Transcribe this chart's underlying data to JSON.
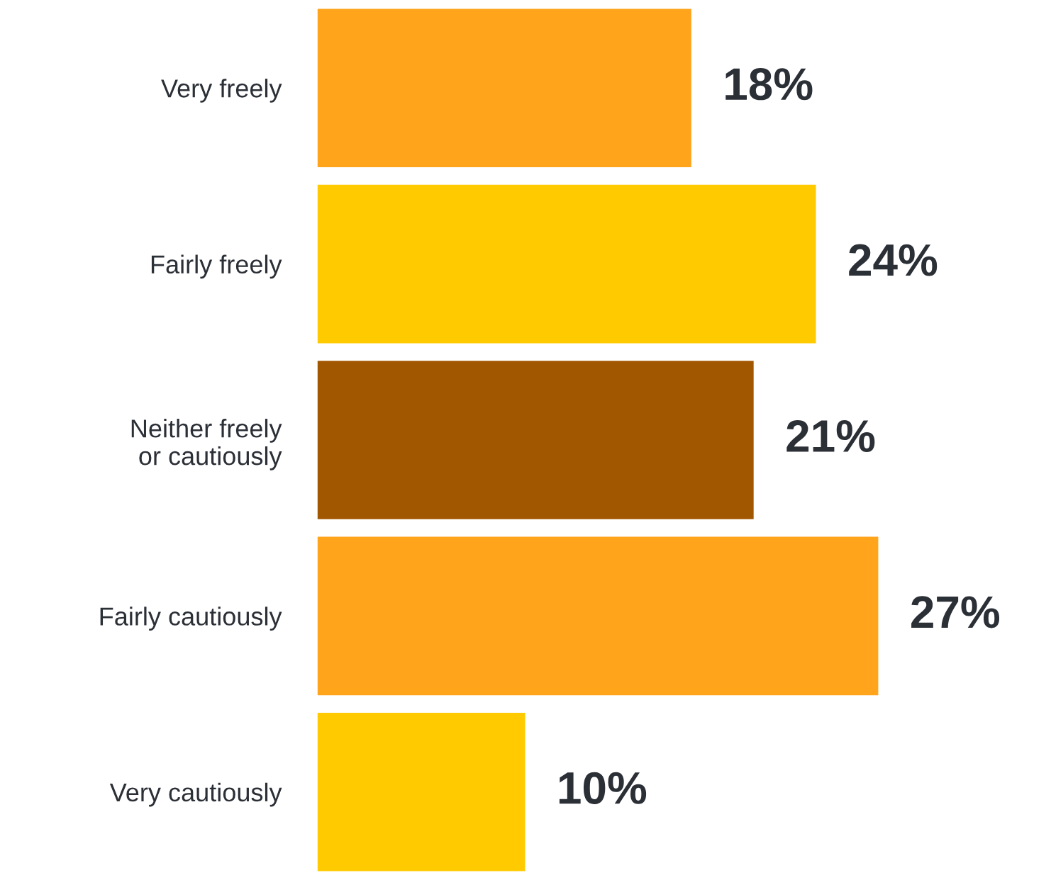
{
  "chart_data": {
    "type": "bar",
    "orientation": "horizontal",
    "categories": [
      "Very freely",
      "Fairly freely",
      "Neither freely\nor cautiously",
      "Fairly cautiously",
      "Very cautiously"
    ],
    "values": [
      18,
      24,
      21,
      27,
      10
    ],
    "colors": [
      "#ffa41b",
      "#ffcb00",
      "#a15600",
      "#ffa41b",
      "#ffcb00"
    ],
    "value_labels": [
      "18%",
      "24%",
      "21%",
      "27%",
      "10%"
    ],
    "grid": false,
    "legend": false
  }
}
